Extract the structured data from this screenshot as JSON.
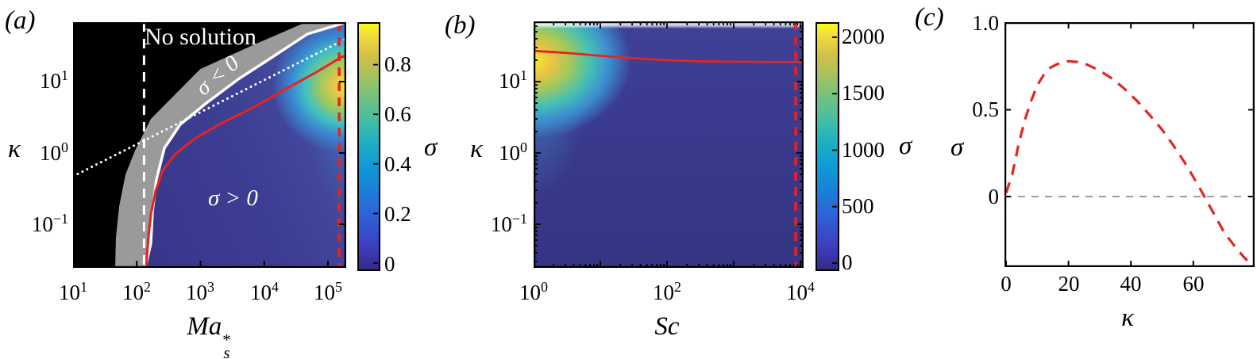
{
  "panels": {
    "a": {
      "tag": "(a)",
      "ylabel": "κ",
      "xlabel": {
        "base": "Ma",
        "sub": "s",
        "sup": "*"
      },
      "xticks": [
        {
          "base": "10",
          "exp": "1"
        },
        {
          "base": "10",
          "exp": "2"
        },
        {
          "base": "10",
          "exp": "3"
        },
        {
          "base": "10",
          "exp": "4"
        },
        {
          "base": "10",
          "exp": "5"
        }
      ],
      "yticks": [
        {
          "base": "10",
          "exp": "1"
        },
        {
          "base": "10",
          "exp": "0"
        },
        {
          "base": "10",
          "exp": "−1"
        }
      ],
      "annotations": {
        "no_solution": "No solution",
        "sigma_negative": "σ < 0",
        "sigma_positive": "σ > 0"
      },
      "colorbar": {
        "label": "σ",
        "tick_labels": [
          "0.8",
          "0.6",
          "0.4",
          "0.2",
          "0"
        ]
      }
    },
    "b": {
      "tag": "(b)",
      "ylabel": "κ",
      "xlabel": {
        "base": "Sc"
      },
      "xticks": [
        {
          "base": "10",
          "exp": "0"
        },
        {
          "base": "10",
          "exp": "2"
        },
        {
          "base": "10",
          "exp": "4"
        }
      ],
      "yticks": [
        {
          "base": "10",
          "exp": "1"
        },
        {
          "base": "10",
          "exp": "0"
        },
        {
          "base": "10",
          "exp": "−1"
        }
      ],
      "colorbar": {
        "label": "σ",
        "tick_labels": [
          "2000",
          "1500",
          "1000",
          "500",
          "0"
        ]
      }
    },
    "c": {
      "tag": "(c)",
      "ylabel": "σ",
      "xlabel": "κ",
      "yticks": [
        "1.0",
        "0.5",
        "0"
      ],
      "xticks": [
        "0",
        "20",
        "40",
        "60"
      ]
    }
  },
  "colors": {
    "red_line": "#e8231f",
    "white_line": "#ffffff",
    "gray_band": "#9a9a9a",
    "black_region": "#000000",
    "gray_dashed": "#8f8f8f",
    "heatmap_base_blue": "#3a3a8e",
    "hotspot_yellow": "#f7ee2c"
  },
  "chart_data": [
    {
      "type": "heatmap",
      "panel": "a",
      "title": "",
      "xlabel": "Ma_s^*",
      "ylabel": "kappa",
      "x_scale": "log",
      "y_scale": "log",
      "xlim": [
        10,
        195000
      ],
      "ylim": [
        0.023,
        68
      ],
      "colorbar": {
        "label": "sigma",
        "ticks": [
          0,
          0.2,
          0.4,
          0.6,
          0.8
        ],
        "range": [
          0,
          0.95
        ]
      },
      "hotspot": {
        "x": 195000,
        "kappa": 10,
        "sigma_max": 0.95
      },
      "regions": {
        "no_solution_boundary": [
          [
            45.8,
            0.0245
          ],
          [
            46.9,
            0.065
          ],
          [
            52.9,
            0.18
          ],
          [
            66.5,
            0.5
          ],
          [
            93.8,
            1.08
          ],
          [
            166,
            3.0
          ],
          [
            986,
            15
          ],
          [
            6550,
            32.4
          ],
          [
            44800,
            68
          ]
        ],
        "neutral_boundary_white": [
          [
            136,
            0.0245
          ],
          [
            166,
            0.054
          ],
          [
            176,
            0.151
          ],
          [
            203,
            0.419
          ],
          [
            271,
            1.17
          ],
          [
            481,
            2.51
          ],
          [
            1240,
            5.01
          ],
          [
            3900,
            10.8
          ],
          [
            13400,
            22.1
          ],
          [
            47400,
            46.4
          ],
          [
            194000,
            68
          ]
        ]
      },
      "curves": [
        {
          "name": "red_curve",
          "color": "red",
          "style": "solid",
          "points": [
            [
              140,
              0.0245
            ],
            [
              152,
              0.065
            ],
            [
              167,
              0.139
            ],
            [
              198,
              0.3
            ],
            [
              256,
              0.57
            ],
            [
              393,
              0.95
            ],
            [
              806,
              1.58
            ],
            [
              2200,
              2.65
            ],
            [
              6950,
              4.4
            ],
            [
              21900,
              7.9
            ],
            [
              69000,
              13.9
            ],
            [
              162000,
              22
            ],
            [
              195000,
              23.3
            ]
          ]
        },
        {
          "name": "dotted_guide",
          "color": "white",
          "style": "dotted",
          "points": [
            [
              10,
              0.47
            ],
            [
              195000,
              40
            ]
          ]
        }
      ],
      "vlines": [
        {
          "x": 130,
          "color": "white",
          "style": "dashed"
        },
        {
          "x": 150000,
          "color": "red",
          "style": "dashed"
        }
      ],
      "xticks": [
        10,
        100,
        1000,
        10000,
        100000
      ],
      "yticks": [
        0.1,
        1,
        10
      ]
    },
    {
      "type": "heatmap",
      "panel": "b",
      "title": "",
      "xlabel": "Sc",
      "ylabel": "kappa",
      "x_scale": "log",
      "y_scale": "log",
      "xlim": [
        1,
        10500
      ],
      "ylim": [
        0.023,
        68
      ],
      "colorbar": {
        "label": "sigma",
        "ticks": [
          0,
          500,
          1000,
          1500,
          2000
        ],
        "range": [
          0,
          2200
        ]
      },
      "hotspot": {
        "x": 1,
        "kappa": 20,
        "sigma_max": 2200
      },
      "curves": [
        {
          "name": "fastest_growing_kappa",
          "color": "red",
          "style": "solid",
          "points": [
            [
              1,
              27
            ],
            [
              2,
              26
            ],
            [
              4,
              24.8
            ],
            [
              10,
              23
            ],
            [
              30,
              21.3
            ],
            [
              100,
              20
            ],
            [
              300,
              19.3
            ],
            [
              1000,
              19
            ],
            [
              3000,
              18.9
            ],
            [
              10500,
              18.8
            ]
          ]
        }
      ],
      "vlines": [
        {
          "x": 8500,
          "color": "red",
          "style": "dashed"
        }
      ],
      "xticks": [
        1,
        100,
        10000
      ],
      "yticks": [
        0.1,
        1,
        10
      ]
    },
    {
      "type": "line",
      "panel": "c",
      "title": "",
      "xlabel": "kappa",
      "ylabel": "sigma",
      "xlim": [
        0,
        79.5
      ],
      "ylim": [
        -0.41,
        1.0
      ],
      "grid": false,
      "series": [
        {
          "name": "growth_rate_vs_kappa",
          "color": "red",
          "style": "dashed",
          "x": [
            0,
            2,
            4,
            6,
            8,
            10,
            12,
            14,
            16,
            18,
            20,
            23,
            26,
            30,
            34,
            38,
            42,
            46,
            50,
            54,
            58,
            62,
            66,
            70,
            73,
            76,
            79.5
          ],
          "y": [
            0.02,
            0.13,
            0.3,
            0.44,
            0.55,
            0.64,
            0.7,
            0.74,
            0.76,
            0.775,
            0.78,
            0.775,
            0.76,
            0.725,
            0.68,
            0.62,
            0.55,
            0.47,
            0.385,
            0.285,
            0.175,
            0.05,
            -0.08,
            -0.21,
            -0.28,
            -0.345,
            -0.41
          ]
        }
      ],
      "hlines": [
        {
          "y": 0,
          "color": "gray",
          "style": "dashed"
        }
      ],
      "xticks": [
        0,
        20,
        40,
        60
      ],
      "yticks": [
        0,
        0.5,
        1.0
      ]
    }
  ]
}
